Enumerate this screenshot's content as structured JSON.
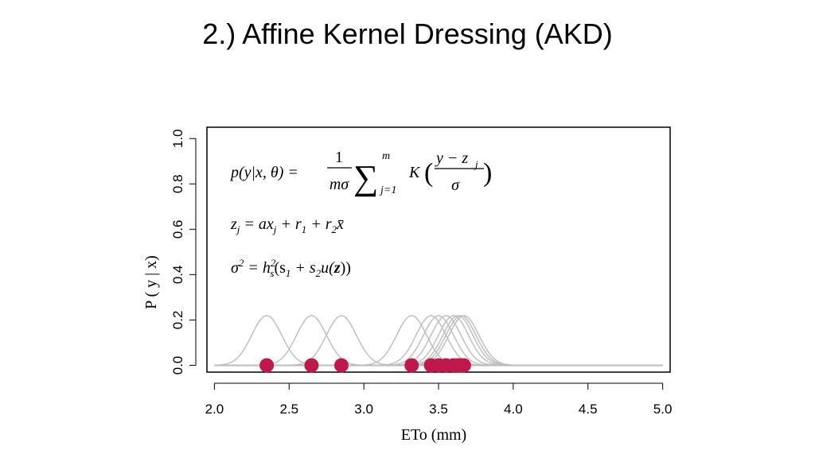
{
  "slide": {
    "title": "2.) Affine Kernel Dressing (AKD)"
  },
  "equations": {
    "eq1": {
      "lhs": "p(y|x, θ) =",
      "frac_num": "1",
      "frac_den": "mσ",
      "sum_sym": "∑",
      "sum_top": "m",
      "sum_bot": "j=1",
      "kernel": "K",
      "k_num": "y − z",
      "k_num_sub": "j",
      "k_den": "σ"
    },
    "eq2": {
      "text": "z",
      "sub": "j",
      "rest": " = ax",
      "sub2": "j",
      "rest2": " + r",
      "sub3": "1",
      "rest3": " + r",
      "sub4": "2",
      "rest4": "x̄"
    },
    "eq3": {
      "lhs": "σ",
      "sup": "2",
      "mid": " = h",
      "h_sup": "2",
      "h_sub": "s",
      "rest": "(s",
      "s1": "1",
      "plus": " + s",
      "s2": "2",
      "tail": "u(",
      "bold": "z",
      "end": "))"
    }
  },
  "chart_data": {
    "type": "line",
    "xlabel": "ETo (mm)",
    "ylabel": "P ( y | x)",
    "xlim": [
      1.95,
      5.05
    ],
    "ylim": [
      -0.03,
      1.05
    ],
    "x_ticks": [
      "2.0",
      "2.5",
      "3.0",
      "3.5",
      "4.0",
      "4.5",
      "5.0"
    ],
    "y_ticks": [
      "0.0",
      "0.2",
      "0.4",
      "0.6",
      "0.8",
      "1.0"
    ],
    "kernel_sigma": 0.1,
    "kernel_peak": 0.22,
    "curve_color": "#c0c0c0",
    "point_color": "#c0184a",
    "baseline_color": "#bdbdbd",
    "kernel_centers": [
      2.35,
      2.65,
      2.85,
      3.32,
      3.45,
      3.5,
      3.55,
      3.6,
      3.63,
      3.65,
      3.67
    ],
    "points_x": [
      2.35,
      2.65,
      2.85,
      3.32,
      3.45,
      3.5,
      3.55,
      3.6,
      3.63,
      3.65,
      3.67
    ],
    "points_y": 0.0
  }
}
